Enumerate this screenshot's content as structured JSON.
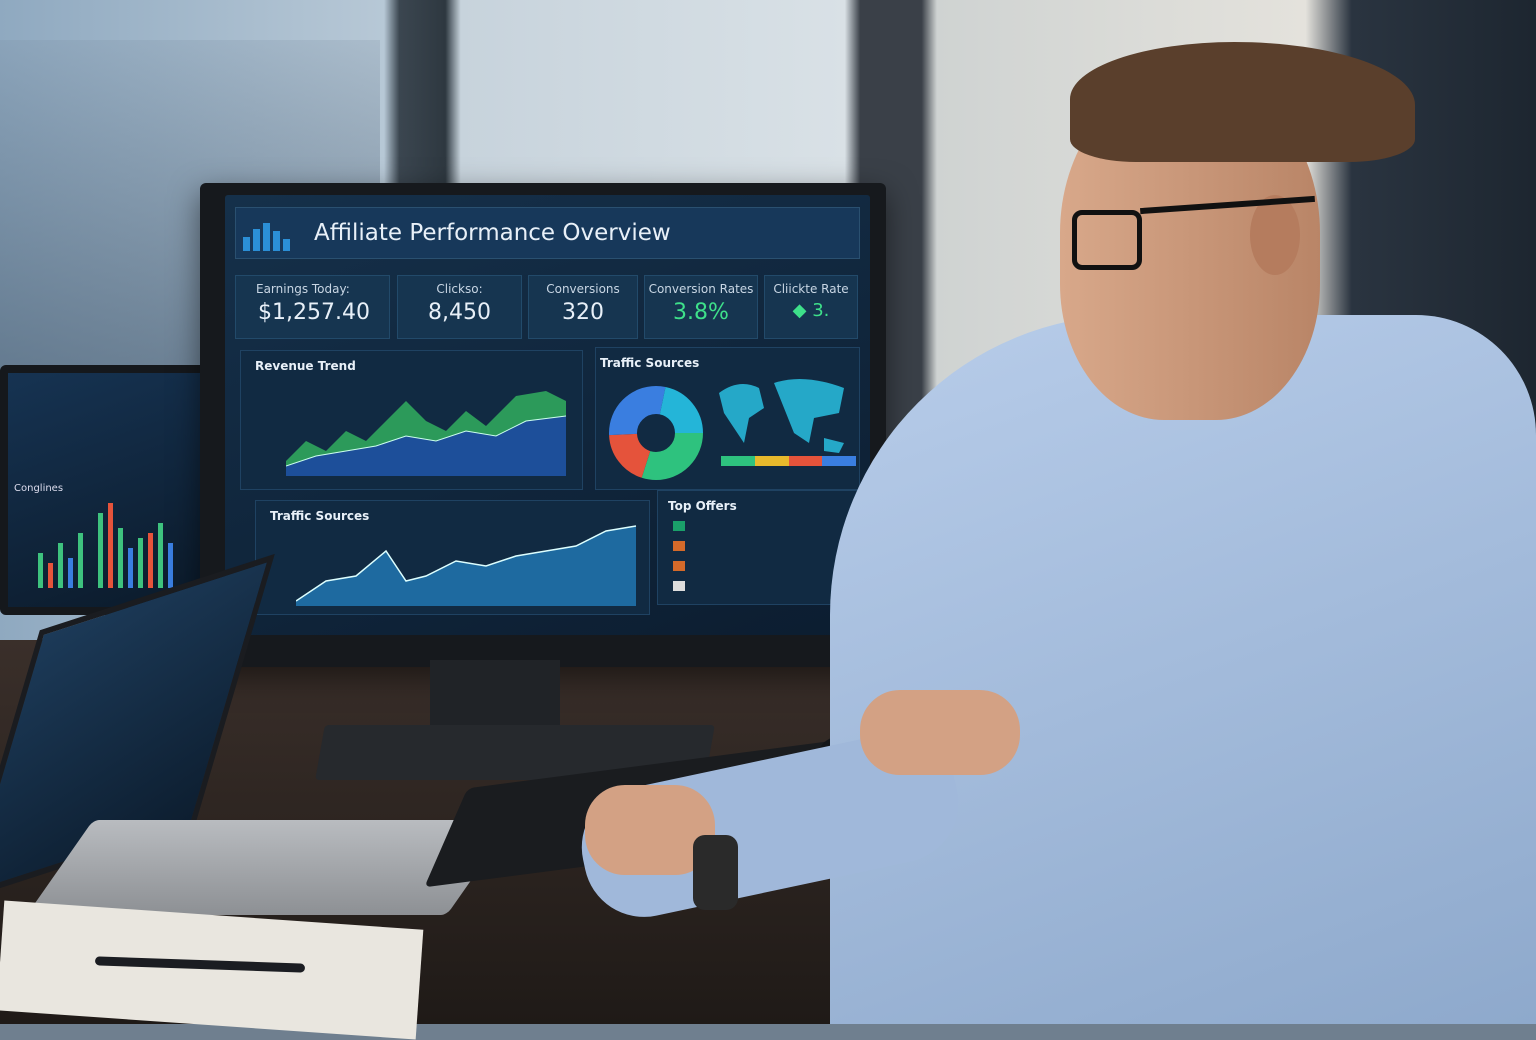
{
  "dashboard": {
    "title": "Affiliate Performance Overview",
    "kpis": [
      {
        "label": "Earnings Today:",
        "value": "$1,257.40",
        "color": "#ffffff"
      },
      {
        "label": "Clickso:",
        "value": "8,450",
        "color": "#ffffff"
      },
      {
        "label": "Conversions",
        "value": "320",
        "color": "#ffffff"
      },
      {
        "label": "Conversion Rates",
        "value": "3.8%",
        "color": "#3ee08a"
      },
      {
        "label": "Cliickte Rate",
        "value": "◆ 3.",
        "color": "#3ee08a"
      }
    ],
    "panels": {
      "revenue_trend": "Revenue Trend",
      "traffic_sources_map": "Traffic Sources",
      "traffic_sources_chart": "Traffic Sources",
      "top_offers": "Top Offers"
    },
    "donut_colors": [
      "#2ec27e",
      "#e5533b",
      "#3a7ee0",
      "#24b5d8"
    ],
    "offer_icon_colors": [
      "#1aa06a",
      "#d46a2a",
      "#d46a2a",
      "#dddddd"
    ],
    "accent": "#2b8fd6"
  },
  "side_devices": {
    "tablet_title": "Conglines"
  }
}
